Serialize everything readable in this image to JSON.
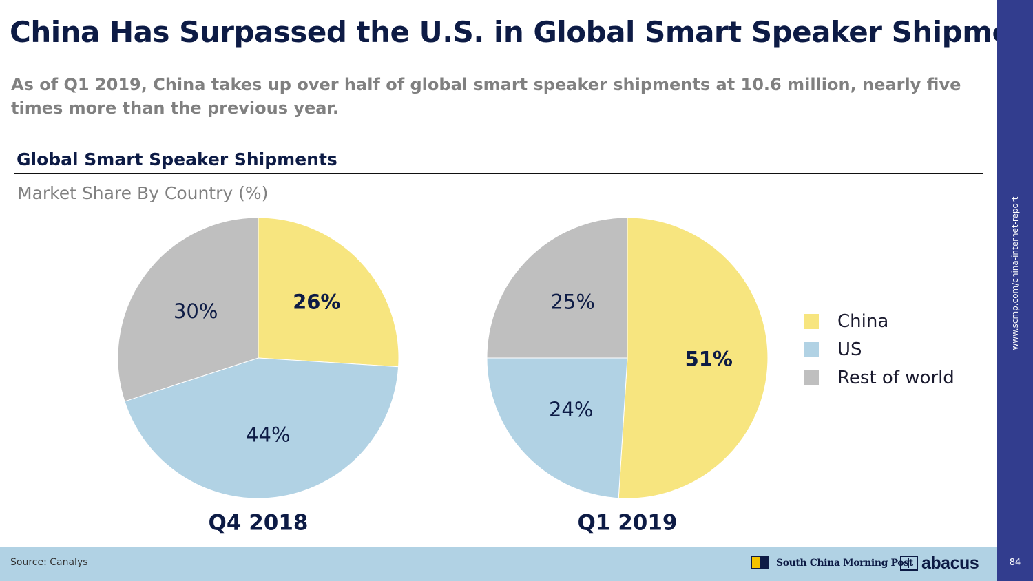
{
  "header": {
    "title": "China Has Surpassed the U.S. in Global Smart Speaker Shipments",
    "subtitle": "As of Q1 2019, China takes up over half of global smart speaker shipments at 10.6 million, nearly five times more than the previous year."
  },
  "chart_data": {
    "type": "pie",
    "title": "Global Smart Speaker Shipments",
    "subtitle": "Market Share By Country (%)",
    "legend": [
      {
        "label": "China",
        "color": "#f7e57f"
      },
      {
        "label": "US",
        "color": "#b1d2e4"
      },
      {
        "label": "Rest of world",
        "color": "#bfbfbf"
      }
    ],
    "charts": [
      {
        "label": "Q4 2018",
        "slices": [
          {
            "name": "China",
            "value": 26,
            "label": "26%",
            "bold": true
          },
          {
            "name": "US",
            "value": 44,
            "label": "44%",
            "bold": false
          },
          {
            "name": "Rest of world",
            "value": 30,
            "label": "30%",
            "bold": false
          }
        ]
      },
      {
        "label": "Q1 2019",
        "slices": [
          {
            "name": "China",
            "value": 51,
            "label": "51%",
            "bold": true
          },
          {
            "name": "US",
            "value": 24,
            "label": "24%",
            "bold": false
          },
          {
            "name": "Rest of world",
            "value": 25,
            "label": "25%",
            "bold": false
          }
        ]
      }
    ]
  },
  "footer": {
    "source": "Source: Canalys",
    "brand": "South China Morning Post",
    "brand2": "abacus"
  },
  "sidebar": {
    "url": "www.scmp.com/china-internet-report",
    "page": "84"
  }
}
